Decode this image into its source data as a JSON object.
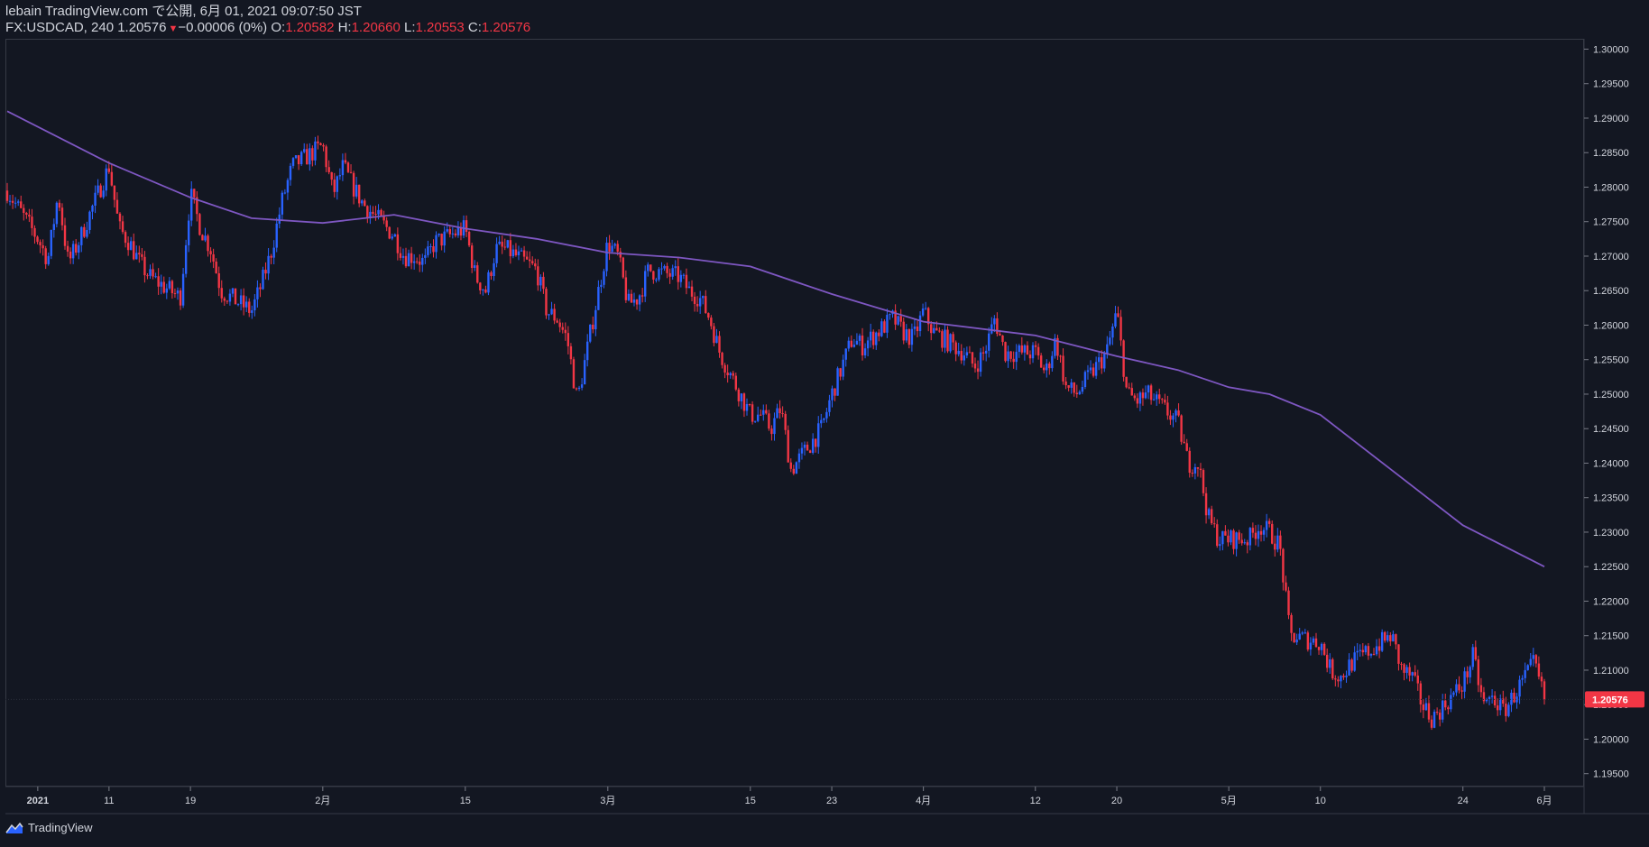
{
  "header": {
    "published_line": "lebain TradingView.com で公開, 6月 01, 2021 09:07:50 JST",
    "symbol": "FX:USDCAD, 240",
    "last": "1.20576",
    "change": "−0.00006 (0%)",
    "open_label": "O:",
    "open": "1.20582",
    "high_label": "H:",
    "high": "1.20660",
    "low_label": "L:",
    "low": "1.20553",
    "close_label": "C:",
    "close": "1.20576"
  },
  "footer": {
    "brand": "TradingView"
  },
  "colors": {
    "background": "#131722",
    "up": "#2962ff",
    "down": "#f23645",
    "moving_average": "#7e57c2",
    "grid_border": "#363a45"
  },
  "chart_data": {
    "type": "candlestick",
    "symbol": "FX:USDCAD",
    "interval": "240",
    "ylim": [
      1.193,
      1.3015
    ],
    "y_ticks": [
      "1.30000",
      "1.29500",
      "1.29000",
      "1.28500",
      "1.28000",
      "1.27500",
      "1.27000",
      "1.26500",
      "1.26000",
      "1.25500",
      "1.25000",
      "1.24500",
      "1.24000",
      "1.23500",
      "1.23000",
      "1.22500",
      "1.22000",
      "1.21500",
      "1.21000",
      "1.20500",
      "1.20000",
      "1.19500"
    ],
    "x_ticks": [
      "2021",
      "11",
      "19",
      "2月",
      "15",
      "3月",
      "15",
      "23",
      "4月",
      "12",
      "20",
      "5月",
      "10",
      "24",
      "6月"
    ],
    "x_tick_dates": [
      "2021-01-04",
      "2021-01-11",
      "2021-01-19",
      "2021-02-01",
      "2021-02-15",
      "2021-03-01",
      "2021-03-15",
      "2021-03-23",
      "2021-04-01",
      "2021-04-12",
      "2021-04-20",
      "2021-05-01",
      "2021-05-10",
      "2021-05-24",
      "2021-06-01"
    ],
    "last_price_label": "1.20576",
    "close_path": [
      [
        "2021-01-01",
        1.2795
      ],
      [
        "2021-01-04",
        1.2725
      ],
      [
        "2021-01-05",
        1.2695
      ],
      [
        "2021-01-06",
        1.279
      ],
      [
        "2021-01-07",
        1.269
      ],
      [
        "2021-01-08",
        1.272
      ],
      [
        "2021-01-11",
        1.283
      ],
      [
        "2021-01-12",
        1.274
      ],
      [
        "2021-01-13",
        1.272
      ],
      [
        "2021-01-14",
        1.269
      ],
      [
        "2021-01-15",
        1.267
      ],
      [
        "2021-01-18",
        1.264
      ],
      [
        "2021-01-19",
        1.279
      ],
      [
        "2021-01-20",
        1.274
      ],
      [
        "2021-01-21",
        1.271
      ],
      [
        "2021-01-22",
        1.265
      ],
      [
        "2021-01-25",
        1.262
      ],
      [
        "2021-01-26",
        1.266
      ],
      [
        "2021-01-27",
        1.271
      ],
      [
        "2021-01-28",
        1.278
      ],
      [
        "2021-01-29",
        1.283
      ],
      [
        "2021-02-01",
        1.286
      ],
      [
        "2021-02-02",
        1.279
      ],
      [
        "2021-02-03",
        1.283
      ],
      [
        "2021-02-04",
        1.28
      ],
      [
        "2021-02-05",
        1.2775
      ],
      [
        "2021-02-08",
        1.273
      ],
      [
        "2021-02-09",
        1.27
      ],
      [
        "2021-02-10",
        1.27
      ],
      [
        "2021-02-11",
        1.269
      ],
      [
        "2021-02-12",
        1.272
      ],
      [
        "2021-02-15",
        1.274
      ],
      [
        "2021-02-16",
        1.267
      ],
      [
        "2021-02-17",
        1.265
      ],
      [
        "2021-02-18",
        1.271
      ],
      [
        "2021-02-19",
        1.271
      ],
      [
        "2021-02-22",
        1.268
      ],
      [
        "2021-02-23",
        1.262
      ],
      [
        "2021-02-24",
        1.261
      ],
      [
        "2021-02-25",
        1.258
      ],
      [
        "2021-02-26",
        1.249
      ],
      [
        "2021-03-01",
        1.272
      ],
      [
        "2021-03-02",
        1.27
      ],
      [
        "2021-03-03",
        1.263
      ],
      [
        "2021-03-04",
        1.264
      ],
      [
        "2021-03-05",
        1.268
      ],
      [
        "2021-03-08",
        1.267
      ],
      [
        "2021-03-09",
        1.265
      ],
      [
        "2021-03-10",
        1.264
      ],
      [
        "2021-03-11",
        1.261
      ],
      [
        "2021-03-12",
        1.256
      ],
      [
        "2021-03-15",
        1.247
      ],
      [
        "2021-03-16",
        1.247
      ],
      [
        "2021-03-17",
        1.245
      ],
      [
        "2021-03-18",
        1.248
      ],
      [
        "2021-03-19",
        1.239
      ],
      [
        "2021-03-22",
        1.245
      ],
      [
        "2021-03-23",
        1.25
      ],
      [
        "2021-03-24",
        1.254
      ],
      [
        "2021-03-25",
        1.258
      ],
      [
        "2021-03-26",
        1.257
      ],
      [
        "2021-03-29",
        1.261
      ],
      [
        "2021-03-30",
        1.259
      ],
      [
        "2021-03-31",
        1.258
      ],
      [
        "2021-04-01",
        1.262
      ],
      [
        "2021-04-02",
        1.259
      ],
      [
        "2021-04-05",
        1.256
      ],
      [
        "2021-04-06",
        1.254
      ],
      [
        "2021-04-07",
        1.256
      ],
      [
        "2021-04-08",
        1.261
      ],
      [
        "2021-04-09",
        1.256
      ],
      [
        "2021-04-12",
        1.256
      ],
      [
        "2021-04-13",
        1.253
      ],
      [
        "2021-04-14",
        1.258
      ],
      [
        "2021-04-15",
        1.251
      ],
      [
        "2021-04-16",
        1.25
      ],
      [
        "2021-04-19",
        1.256
      ],
      [
        "2021-04-20",
        1.262
      ],
      [
        "2021-04-21",
        1.25
      ],
      [
        "2021-04-22",
        1.249
      ],
      [
        "2021-04-23",
        1.25
      ],
      [
        "2021-04-26",
        1.246
      ],
      [
        "2021-04-27",
        1.24
      ],
      [
        "2021-04-28",
        1.24
      ],
      [
        "2021-04-29",
        1.232
      ],
      [
        "2021-04-30",
        1.229
      ],
      [
        "2021-05-03",
        1.229
      ],
      [
        "2021-05-04",
        1.231
      ],
      [
        "2021-05-05",
        1.23
      ],
      [
        "2021-05-06",
        1.228
      ],
      [
        "2021-05-07",
        1.215
      ],
      [
        "2021-05-10",
        1.214
      ],
      [
        "2021-05-11",
        1.21
      ],
      [
        "2021-05-12",
        1.209
      ],
      [
        "2021-05-13",
        1.211
      ],
      [
        "2021-05-14",
        1.212
      ],
      [
        "2021-05-17",
        1.215
      ],
      [
        "2021-05-18",
        1.21
      ],
      [
        "2021-05-19",
        1.209
      ],
      [
        "2021-05-20",
        1.205
      ],
      [
        "2021-05-21",
        1.203
      ],
      [
        "2021-05-24",
        1.208
      ],
      [
        "2021-05-25",
        1.212
      ],
      [
        "2021-05-26",
        1.205
      ],
      [
        "2021-05-27",
        1.206
      ],
      [
        "2021-05-28",
        1.204
      ],
      [
        "2021-05-31",
        1.211
      ],
      [
        "2021-06-01",
        1.20576
      ]
    ],
    "series": [
      {
        "name": "",
        "type": "line",
        "points": [
          [
            "2021-01-01",
            1.291
          ],
          [
            "2021-01-11",
            1.2835
          ],
          [
            "2021-01-19",
            1.2785
          ],
          [
            "2021-01-25",
            1.2755
          ],
          [
            "2021-02-01",
            1.2748
          ],
          [
            "2021-02-08",
            1.276
          ],
          [
            "2021-02-15",
            1.274
          ],
          [
            "2021-02-22",
            1.2725
          ],
          [
            "2021-03-01",
            1.2705
          ],
          [
            "2021-03-08",
            1.2698
          ],
          [
            "2021-03-15",
            1.2685
          ],
          [
            "2021-03-23",
            1.2645
          ],
          [
            "2021-04-01",
            1.2605
          ],
          [
            "2021-04-12",
            1.2585
          ],
          [
            "2021-04-20",
            1.2555
          ],
          [
            "2021-04-26",
            1.2535
          ],
          [
            "2021-05-01",
            1.251
          ],
          [
            "2021-05-05",
            1.25
          ],
          [
            "2021-05-10",
            1.247
          ],
          [
            "2021-05-17",
            1.239
          ],
          [
            "2021-05-24",
            1.231
          ],
          [
            "2021-06-01",
            1.225
          ]
        ]
      }
    ]
  }
}
